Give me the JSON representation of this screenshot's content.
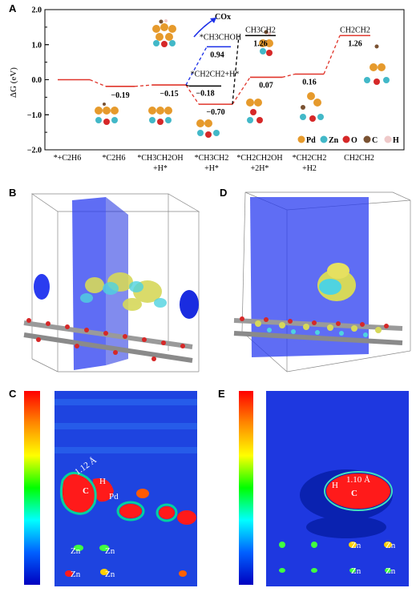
{
  "panel_labels": {
    "a": "A",
    "b": "B",
    "c": "C",
    "d": "D",
    "e": "E"
  },
  "chart_data": {
    "type": "line",
    "ylabel": "ΔG (eV)",
    "ylim": [
      -2.0,
      2.0
    ],
    "yticks": [
      "2.0",
      "1.0",
      "0.0",
      "−1.0",
      "−2.0"
    ],
    "yticks_values": [
      2.0,
      1.0,
      0.0,
      -1.0,
      -2.0
    ],
    "grid": false,
    "legend": [
      "Pd",
      "Zn",
      "O",
      "C",
      "H"
    ],
    "legend_placement": "bottom-right",
    "legend_colors": {
      "Pd": "#e69a2c",
      "Zn": "#42b8c8",
      "O": "#d62828",
      "C": "#7a5232",
      "H": "#efc9c9"
    },
    "x_labels": [
      [
        "*+C2H6"
      ],
      [
        "*C2H6"
      ],
      [
        "*CH3CH2OH",
        "+H*"
      ],
      [
        "*CH3CH2",
        "+H*"
      ],
      [
        "*CH2CH2OH",
        "+2H*"
      ],
      [
        "*CH2CH2",
        "+H2"
      ],
      [
        "CH2CH2"
      ]
    ],
    "series": [
      {
        "color": "#e0342a",
        "values": [
          0.0,
          -0.19,
          -0.15,
          -0.7,
          0.07,
          0.16,
          1.26
        ]
      },
      {
        "color": "#1a2ee8",
        "values": [
          -0.15,
          0.94
        ]
      },
      {
        "color": "#000000",
        "values": [
          -0.7,
          -0.18,
          1.26
        ]
      }
    ],
    "annotations": [
      "−0.19",
      "−0.15",
      "−0.70",
      "0.94",
      "−0.18",
      "1.26",
      "0.07",
      "0.16",
      "1.26",
      "*CH3CHOH",
      "*CH2CH2+H*",
      "CH3CH2",
      "CH2CH2",
      "COx"
    ]
  },
  "panel_c": {
    "labels": [
      "1.12 Å",
      "H",
      "C",
      "Pd",
      "Zn",
      "Zn",
      "Zn",
      "Zn"
    ]
  },
  "panel_e": {
    "labels": [
      "1.10 Å",
      "H",
      "C",
      "Zn",
      "Zn",
      "Zn",
      "Zn"
    ]
  }
}
